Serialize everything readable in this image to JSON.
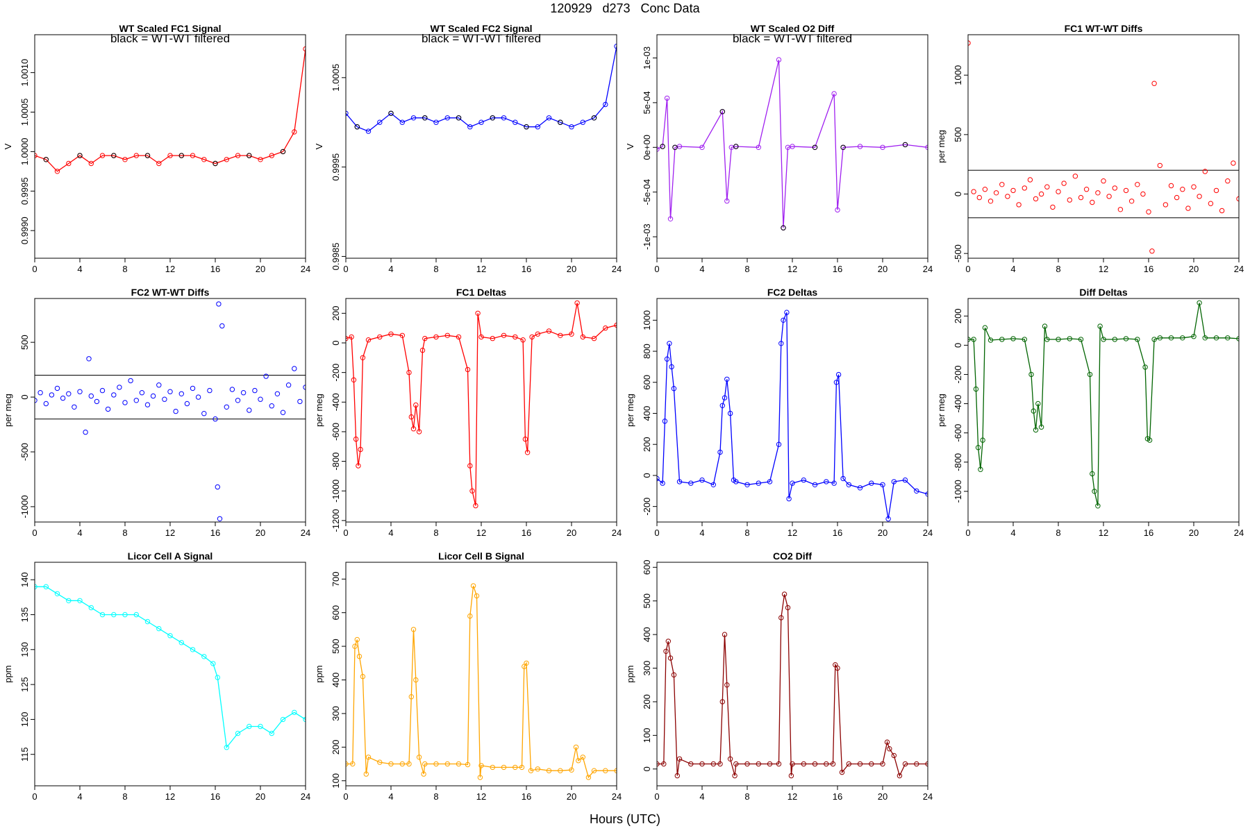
{
  "header": {
    "title": "120929   d273   Conc Data",
    "xlabel": "Hours (UTC)"
  },
  "chart_data": [
    {
      "id": "fc1_signal",
      "type": "line",
      "title": "WT Scaled FC1 Signal",
      "annotation": "black = WT-WT filtered",
      "xlabel": "",
      "ylabel": "V",
      "color": "#ff0000",
      "overlay_color": "#000000",
      "xlim": [
        0,
        24
      ],
      "ylim": [
        0.99865,
        1.00148
      ],
      "xticks": [
        0,
        4,
        8,
        12,
        16,
        20,
        24
      ],
      "yticks": [
        0.999,
        0.9995,
        1.0,
        1.0005,
        1.001
      ],
      "ytick_labels": [
        "0.9990",
        "0.9995",
        "1.0000",
        "1.0005",
        "1.0010"
      ],
      "x": [
        0,
        1,
        2,
        3,
        4,
        5,
        6,
        7,
        8,
        9,
        10,
        11,
        12,
        13,
        14,
        15,
        16,
        17,
        18,
        19,
        20,
        21,
        22,
        23,
        24
      ],
      "values": [
        0.99995,
        0.9999,
        0.99975,
        0.99985,
        0.99995,
        0.99985,
        0.99995,
        0.99995,
        0.9999,
        0.99995,
        0.99995,
        0.99985,
        0.99995,
        0.99995,
        0.99995,
        0.9999,
        0.99985,
        0.9999,
        0.99995,
        0.99995,
        0.9999,
        0.99995,
        1.0,
        1.00025,
        1.0013
      ]
    },
    {
      "id": "fc2_signal",
      "type": "line",
      "title": "WT Scaled FC2 Signal",
      "annotation": "black = WT-WT filtered",
      "xlabel": "",
      "ylabel": "V",
      "color": "#0000ff",
      "overlay_color": "#000000",
      "xlim": [
        0,
        24
      ],
      "ylim": [
        0.99848,
        1.00098
      ],
      "xticks": [
        0,
        4,
        8,
        12,
        16,
        20,
        24
      ],
      "yticks": [
        0.9985,
        0.9995,
        1.0005
      ],
      "ytick_labels": [
        "0.9985",
        "0.9995",
        "1.0005"
      ],
      "x": [
        0,
        1,
        2,
        3,
        4,
        5,
        6,
        7,
        8,
        9,
        10,
        11,
        12,
        13,
        14,
        15,
        16,
        17,
        18,
        19,
        20,
        21,
        22,
        23,
        24
      ],
      "values": [
        1.0001,
        0.99995,
        0.9999,
        1.0,
        1.0001,
        1.0,
        1.00005,
        1.00005,
        1.0,
        1.00005,
        1.00005,
        0.99995,
        1.0,
        1.00005,
        1.00005,
        1.0,
        0.99995,
        0.99995,
        1.00005,
        1.0,
        0.99995,
        1.0,
        1.00005,
        1.0002,
        1.00085
      ]
    },
    {
      "id": "o2_diff",
      "type": "line",
      "title": "WT Scaled O2 Diff",
      "annotation": "black = WT-WT filtered",
      "xlabel": "",
      "ylabel": "V",
      "color": "#a020f0",
      "overlay_color": "#000000",
      "xlim": [
        0,
        24
      ],
      "ylim": [
        -0.00124,
        0.00126
      ],
      "xticks": [
        0,
        4,
        8,
        12,
        16,
        20,
        24
      ],
      "yticks": [
        -0.001,
        -0.0005,
        0,
        0.0005,
        0.001
      ],
      "ytick_labels": [
        "-1e-03",
        "-5e-04",
        "0e+00",
        "5e-04",
        "1e-03"
      ],
      "x": [
        0,
        0.5,
        0.9,
        1.2,
        1.6,
        2,
        4,
        5.8,
        6.2,
        6.6,
        7,
        9,
        10.8,
        11.2,
        11.6,
        12,
        14,
        15.7,
        16,
        16.5,
        18,
        20,
        22,
        24
      ],
      "values": [
        -2e-05,
        1e-05,
        0.00055,
        -0.0008,
        0.0,
        1e-05,
        0.0,
        0.0004,
        -0.0006,
        0.0,
        1e-05,
        0.0,
        0.00098,
        -0.0009,
        0.0,
        1e-05,
        0.0,
        0.0006,
        -0.0007,
        0.0,
        1e-05,
        0.0,
        3e-05,
        0.0
      ]
    },
    {
      "id": "fc1_wtwt",
      "type": "scatter",
      "title": "FC1 WT-WT Diffs",
      "xlabel": "",
      "ylabel": "per meg",
      "color": "#ff0000",
      "xlim": [
        0,
        24
      ],
      "ylim": [
        -540,
        1340
      ],
      "hlines": [
        200,
        -200
      ],
      "xticks": [
        0,
        4,
        8,
        12,
        16,
        20,
        24
      ],
      "yticks": [
        -500,
        0,
        500,
        1000
      ],
      "ytick_labels": [
        "-500",
        "0",
        "500",
        "1000"
      ],
      "x": [
        0,
        0.5,
        1,
        1.5,
        2,
        2.5,
        3,
        3.5,
        4,
        4.5,
        5,
        5.5,
        6,
        6.5,
        7,
        7.5,
        8,
        8.5,
        9,
        9.5,
        10,
        10.5,
        11,
        11.5,
        12,
        12.5,
        13,
        13.5,
        14,
        14.5,
        15,
        15.5,
        16,
        16.3,
        16.5,
        17,
        17.5,
        18,
        18.5,
        19,
        19.5,
        20,
        20.5,
        21,
        21.5,
        22,
        22.5,
        23,
        23.5,
        24
      ],
      "values": [
        1270,
        20,
        -30,
        40,
        -60,
        10,
        80,
        -20,
        30,
        -90,
        50,
        120,
        -40,
        0,
        60,
        -110,
        20,
        90,
        -50,
        150,
        -30,
        40,
        -70,
        10,
        110,
        -20,
        50,
        -130,
        30,
        -60,
        80,
        0,
        -150,
        -480,
        930,
        240,
        -90,
        70,
        -30,
        40,
        -120,
        60,
        -20,
        190,
        -80,
        30,
        -140,
        110,
        260,
        -40
      ]
    },
    {
      "id": "fc2_wtwt",
      "type": "scatter",
      "title": "FC2 WT-WT Diffs",
      "xlabel": "",
      "ylabel": "per meg",
      "color": "#0000ff",
      "xlim": [
        0,
        24
      ],
      "ylim": [
        -1140,
        900
      ],
      "hlines": [
        200,
        -200
      ],
      "xticks": [
        0,
        4,
        8,
        12,
        16,
        20,
        24
      ],
      "yticks": [
        -1000,
        -500,
        0,
        500
      ],
      "ytick_labels": [
        "-1000",
        "-500",
        "0",
        "500"
      ],
      "x": [
        0,
        0.5,
        1,
        1.5,
        2,
        2.5,
        3,
        3.5,
        4,
        4.5,
        4.8,
        5,
        5.5,
        6,
        6.5,
        7,
        7.5,
        8,
        8.5,
        9,
        9.5,
        10,
        10.5,
        11,
        11.5,
        12,
        12.5,
        13,
        13.5,
        14,
        14.5,
        15,
        15.5,
        16,
        16.2,
        16.3,
        16.4,
        16.6,
        17,
        17.5,
        18,
        18.5,
        19,
        19.5,
        20,
        20.5,
        21,
        21.5,
        22,
        22.5,
        23,
        23.5,
        24
      ],
      "values": [
        -30,
        40,
        -60,
        20,
        80,
        -10,
        30,
        -90,
        50,
        -320,
        350,
        10,
        -40,
        60,
        -110,
        20,
        90,
        -50,
        150,
        -30,
        40,
        -70,
        10,
        110,
        -20,
        50,
        -130,
        30,
        -60,
        80,
        0,
        -150,
        60,
        -200,
        -820,
        850,
        -1110,
        650,
        -90,
        70,
        -30,
        40,
        -120,
        60,
        -20,
        190,
        -80,
        30,
        -140,
        110,
        260,
        -40,
        90
      ]
    },
    {
      "id": "fc1_deltas",
      "type": "line",
      "title": "FC1 Deltas",
      "xlabel": "",
      "ylabel": "per meg",
      "color": "#ff0000",
      "xlim": [
        0,
        24
      ],
      "ylim": [
        -1210,
        300
      ],
      "xticks": [
        0,
        4,
        8,
        12,
        16,
        20,
        24
      ],
      "yticks": [
        -1200,
        -1000,
        -800,
        -600,
        -400,
        -200,
        0,
        200
      ],
      "ytick_labels": [
        "-1200",
        "-1000",
        "-800",
        "-600",
        "-400",
        "-200",
        "0",
        "200"
      ],
      "x": [
        0,
        0.5,
        0.7,
        0.9,
        1.1,
        1.3,
        1.5,
        2,
        3,
        4,
        5,
        5.6,
        5.8,
        6.0,
        6.2,
        6.5,
        6.8,
        7,
        8,
        9,
        10,
        10.8,
        11,
        11.2,
        11.5,
        11.7,
        12,
        13,
        14,
        15,
        15.7,
        15.9,
        16.1,
        16.5,
        17,
        18,
        19,
        20,
        20.5,
        21,
        22,
        23,
        24
      ],
      "values": [
        30,
        40,
        -250,
        -650,
        -830,
        -720,
        -100,
        20,
        40,
        60,
        50,
        -200,
        -500,
        -580,
        -420,
        -600,
        -50,
        30,
        40,
        50,
        40,
        -180,
        -830,
        -1000,
        -1100,
        200,
        40,
        30,
        50,
        40,
        20,
        -650,
        -740,
        40,
        60,
        80,
        50,
        60,
        270,
        40,
        30,
        100,
        120
      ]
    },
    {
      "id": "fc2_deltas",
      "type": "line",
      "title": "FC2 Deltas",
      "xlabel": "",
      "ylabel": "per meg",
      "color": "#0000ff",
      "xlim": [
        0,
        24
      ],
      "ylim": [
        -300,
        1140
      ],
      "xticks": [
        0,
        4,
        8,
        12,
        16,
        20,
        24
      ],
      "yticks": [
        -200,
        0,
        200,
        400,
        600,
        800,
        1000
      ],
      "ytick_labels": [
        "-200",
        "0",
        "200",
        "400",
        "600",
        "800",
        "1000"
      ],
      "x": [
        0,
        0.5,
        0.7,
        0.9,
        1.1,
        1.3,
        1.5,
        2,
        3,
        4,
        5,
        5.6,
        5.8,
        6.0,
        6.2,
        6.5,
        6.8,
        7,
        8,
        9,
        10,
        10.8,
        11,
        11.2,
        11.5,
        11.7,
        12,
        13,
        14,
        15,
        15.7,
        15.9,
        16.1,
        16.5,
        17,
        18,
        19,
        20,
        20.5,
        21,
        22,
        23,
        24
      ],
      "values": [
        -20,
        -50,
        350,
        750,
        850,
        700,
        560,
        -40,
        -50,
        -30,
        -60,
        150,
        450,
        500,
        620,
        400,
        -30,
        -40,
        -60,
        -50,
        -40,
        200,
        850,
        1000,
        1050,
        -150,
        -50,
        -30,
        -60,
        -40,
        -50,
        600,
        650,
        -20,
        -60,
        -80,
        -50,
        -60,
        -280,
        -40,
        -30,
        -100,
        -120
      ]
    },
    {
      "id": "diff_deltas",
      "type": "line",
      "title": "Diff Deltas",
      "xlabel": "",
      "ylabel": "per meg",
      "color": "#006400",
      "xlim": [
        0,
        24
      ],
      "ylim": [
        -1210,
        320
      ],
      "xticks": [
        0,
        4,
        8,
        12,
        16,
        20,
        24
      ],
      "yticks": [
        -1000,
        -800,
        -600,
        -400,
        -200,
        0,
        200
      ],
      "ytick_labels": [
        "-1000",
        "-800",
        "-600",
        "-400",
        "-200",
        "0",
        "200"
      ],
      "x": [
        0,
        0.5,
        0.7,
        0.9,
        1.1,
        1.3,
        1.5,
        2,
        3,
        4,
        5,
        5.6,
        5.8,
        6.0,
        6.2,
        6.5,
        6.8,
        7,
        8,
        9,
        10,
        10.8,
        11,
        11.2,
        11.5,
        11.7,
        12,
        13,
        14,
        15,
        15.7,
        15.9,
        16.1,
        16.5,
        17,
        18,
        19,
        20,
        20.5,
        21,
        22,
        23,
        24
      ],
      "values": [
        40,
        40,
        -300,
        -700,
        -850,
        -650,
        120,
        35,
        40,
        45,
        40,
        -200,
        -450,
        -580,
        -400,
        -560,
        130,
        40,
        40,
        45,
        40,
        -200,
        -880,
        -1000,
        -1100,
        130,
        40,
        40,
        45,
        40,
        -150,
        -640,
        -650,
        40,
        50,
        50,
        50,
        60,
        290,
        50,
        50,
        50,
        45
      ]
    },
    {
      "id": "licor_a",
      "type": "line",
      "title": "Licor Cell A Signal",
      "xlabel": "",
      "ylabel": "ppm",
      "color": "#00ffff",
      "xlim": [
        0,
        24
      ],
      "ylim": [
        110.5,
        142.5
      ],
      "xticks": [
        0,
        4,
        8,
        12,
        16,
        20,
        24
      ],
      "yticks": [
        115,
        120,
        125,
        130,
        135,
        140
      ],
      "ytick_labels": [
        "115",
        "120",
        "125",
        "130",
        "135",
        "140"
      ],
      "x": [
        0,
        1,
        2,
        3,
        4,
        5,
        6,
        7,
        8,
        9,
        10,
        11,
        12,
        13,
        14,
        15,
        15.8,
        16.2,
        17,
        18,
        19,
        20,
        21,
        22,
        23,
        24
      ],
      "values": [
        139,
        139,
        138,
        137,
        137,
        136,
        135,
        135,
        135,
        135,
        134,
        133,
        132,
        131,
        130,
        129,
        128,
        126,
        116,
        118,
        119,
        119,
        118,
        120,
        121,
        120
      ]
    },
    {
      "id": "licor_b",
      "type": "line",
      "title": "Licor Cell B Signal",
      "xlabel": "",
      "ylabel": "ppm",
      "color": "#ffa500",
      "xlim": [
        0,
        24
      ],
      "ylim": [
        85,
        750
      ],
      "xticks": [
        0,
        4,
        8,
        12,
        16,
        20,
        24
      ],
      "yticks": [
        100,
        200,
        300,
        400,
        500,
        600,
        700
      ],
      "ytick_labels": [
        "100",
        "200",
        "300",
        "400",
        "500",
        "600",
        "700"
      ],
      "x": [
        0,
        0.6,
        0.8,
        1,
        1.2,
        1.5,
        1.8,
        2,
        3,
        4,
        5,
        5.6,
        5.8,
        6,
        6.2,
        6.5,
        6.9,
        7,
        8,
        9,
        10,
        10.8,
        11,
        11.3,
        11.6,
        11.9,
        12,
        13,
        14,
        15,
        15.6,
        15.8,
        16,
        16.4,
        17,
        18,
        19,
        20,
        20.4,
        20.6,
        21,
        21.5,
        22,
        23,
        24
      ],
      "values": [
        150,
        150,
        500,
        520,
        470,
        410,
        120,
        170,
        155,
        150,
        150,
        150,
        350,
        550,
        400,
        170,
        120,
        150,
        150,
        150,
        150,
        148,
        590,
        680,
        650,
        110,
        145,
        140,
        140,
        140,
        140,
        440,
        450,
        130,
        135,
        130,
        130,
        132,
        200,
        160,
        170,
        110,
        130,
        130,
        130
      ]
    },
    {
      "id": "co2_diff",
      "type": "line",
      "title": "CO2 Diff",
      "xlabel": "",
      "ylabel": "ppm",
      "color": "#8b0000",
      "xlim": [
        0,
        24
      ],
      "ylim": [
        -50,
        615
      ],
      "xticks": [
        0,
        4,
        8,
        12,
        16,
        20,
        24
      ],
      "yticks": [
        0,
        100,
        200,
        300,
        400,
        500,
        600
      ],
      "ytick_labels": [
        "0",
        "100",
        "200",
        "300",
        "400",
        "500",
        "600"
      ],
      "x": [
        0,
        0.6,
        0.8,
        1,
        1.2,
        1.5,
        1.8,
        2,
        3,
        4,
        5,
        5.6,
        5.8,
        6,
        6.2,
        6.5,
        6.9,
        7,
        8,
        9,
        10,
        10.8,
        11,
        11.3,
        11.6,
        11.9,
        12,
        13,
        14,
        15,
        15.6,
        15.8,
        16,
        16.4,
        17,
        18,
        19,
        20,
        20.4,
        20.6,
        21,
        21.5,
        22,
        23,
        24
      ],
      "values": [
        15,
        15,
        350,
        380,
        330,
        280,
        -20,
        30,
        15,
        15,
        15,
        15,
        200,
        400,
        250,
        30,
        -20,
        15,
        15,
        15,
        15,
        15,
        450,
        520,
        480,
        -20,
        15,
        15,
        15,
        15,
        15,
        310,
        300,
        -10,
        15,
        15,
        15,
        15,
        80,
        60,
        40,
        -20,
        15,
        15,
        15
      ]
    }
  ]
}
